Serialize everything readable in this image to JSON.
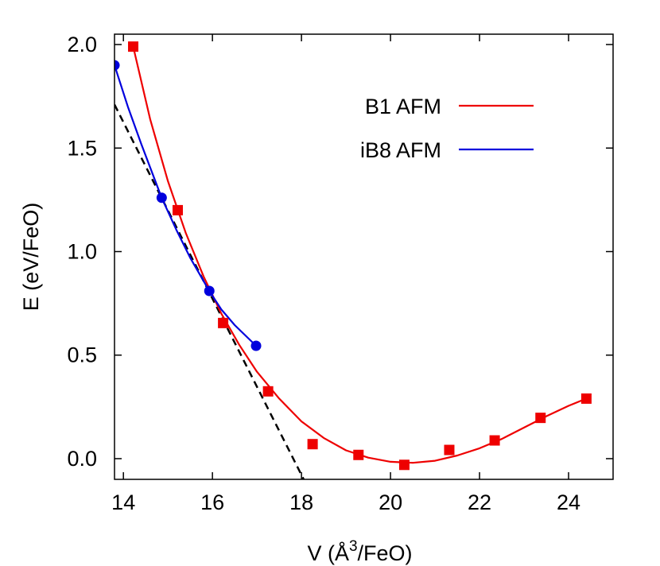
{
  "chart_data": {
    "type": "line",
    "xlabel_prefix": "V (Å",
    "xlabel_sup": "3",
    "xlabel_suffix": "/FeO)",
    "ylabel": "E (eV/FeO)",
    "xlim": [
      13.8,
      25.0
    ],
    "ylim": [
      -0.1,
      2.05
    ],
    "x_ticks": [
      14,
      16,
      18,
      20,
      22,
      24
    ],
    "y_ticks": [
      0.0,
      0.5,
      1.0,
      1.5,
      2.0
    ],
    "x_tick_labels": [
      "14",
      "16",
      "18",
      "20",
      "22",
      "24"
    ],
    "y_tick_labels": [
      "0.0",
      "0.5",
      "1.0",
      "1.5",
      "2.0"
    ],
    "grid": false,
    "legend_position": "top-right",
    "series": [
      {
        "name": "B1 AFM",
        "color": "#ee0000",
        "marker": "square",
        "points": [
          {
            "x": 14.22,
            "y": 1.99
          },
          {
            "x": 15.22,
            "y": 1.2
          },
          {
            "x": 16.24,
            "y": 0.655
          },
          {
            "x": 17.25,
            "y": 0.325
          },
          {
            "x": 18.25,
            "y": 0.07
          },
          {
            "x": 19.28,
            "y": 0.018
          },
          {
            "x": 20.31,
            "y": -0.03
          },
          {
            "x": 21.32,
            "y": 0.042
          },
          {
            "x": 22.34,
            "y": 0.088
          },
          {
            "x": 23.37,
            "y": 0.197
          },
          {
            "x": 24.4,
            "y": 0.29
          }
        ],
        "curve": [
          [
            14.22,
            1.99
          ],
          [
            14.6,
            1.64
          ],
          [
            15.0,
            1.34
          ],
          [
            15.4,
            1.09
          ],
          [
            15.8,
            0.88
          ],
          [
            16.2,
            0.7
          ],
          [
            16.6,
            0.55
          ],
          [
            17.0,
            0.42
          ],
          [
            17.5,
            0.29
          ],
          [
            18.0,
            0.18
          ],
          [
            18.5,
            0.1
          ],
          [
            19.0,
            0.04
          ],
          [
            19.5,
            0.005
          ],
          [
            20.0,
            -0.015
          ],
          [
            20.5,
            -0.02
          ],
          [
            21.0,
            -0.01
          ],
          [
            21.5,
            0.015
          ],
          [
            22.0,
            0.05
          ],
          [
            22.5,
            0.095
          ],
          [
            23.0,
            0.15
          ],
          [
            23.5,
            0.205
          ],
          [
            24.0,
            0.255
          ],
          [
            24.4,
            0.29
          ]
        ]
      },
      {
        "name": "iB8 AFM",
        "color": "#0000dd",
        "marker": "circle",
        "points": [
          {
            "x": 13.8,
            "y": 1.9
          },
          {
            "x": 14.86,
            "y": 1.26
          },
          {
            "x": 15.93,
            "y": 0.81
          },
          {
            "x": 16.98,
            "y": 0.545
          }
        ],
        "curve": [
          [
            13.8,
            1.9
          ],
          [
            14.1,
            1.7
          ],
          [
            14.4,
            1.52
          ],
          [
            14.86,
            1.26
          ],
          [
            15.2,
            1.1
          ],
          [
            15.5,
            0.97
          ],
          [
            15.93,
            0.81
          ],
          [
            16.2,
            0.72
          ],
          [
            16.5,
            0.645
          ],
          [
            16.98,
            0.545
          ]
        ]
      }
    ],
    "tangent_line": {
      "style": "dashed",
      "color": "#000000",
      "from": [
        13.8,
        1.71
      ],
      "to": [
        18.05,
        -0.1
      ]
    }
  }
}
